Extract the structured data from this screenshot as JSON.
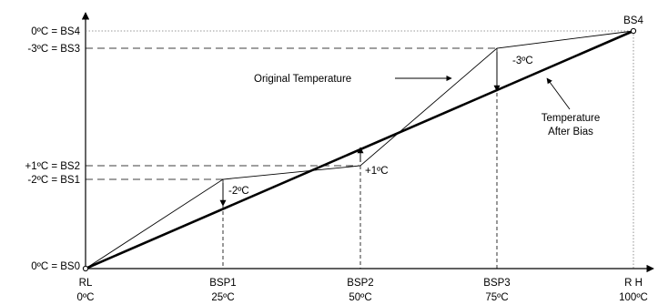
{
  "x_ticks": [
    {
      "name": "RL",
      "value": "0ºC",
      "pct": 0
    },
    {
      "name": "BSP1",
      "value": "25ºC",
      "pct": 25
    },
    {
      "name": "BSP2",
      "value": "50ºC",
      "pct": 50
    },
    {
      "name": "BSP3",
      "value": "75ºC",
      "pct": 75
    },
    {
      "name": "R H",
      "value": "100ºC",
      "pct": 100
    }
  ],
  "y_labels": [
    {
      "text": "0ºC = BS4",
      "id": "BS4"
    },
    {
      "text": "-3ºC = BS3",
      "id": "BS3"
    },
    {
      "text": "+1ºC = BS2",
      "id": "BS2"
    },
    {
      "text": "-2ºC = BS1",
      "id": "BS1"
    },
    {
      "text": "0ºC = BS0",
      "id": "BS0"
    }
  ],
  "endpoint_label": "BS4",
  "bias_labels": {
    "bsp1": "-2ºC",
    "bsp2": "+1ºC",
    "bsp3": "-3ºC"
  },
  "callouts": {
    "original": "Original Temperature",
    "after_bias_line1": "Temperature",
    "after_bias_line2": "After Bias"
  },
  "colors": {
    "line": "#000000",
    "dashed": "#000000",
    "dotted": "#555555"
  }
}
